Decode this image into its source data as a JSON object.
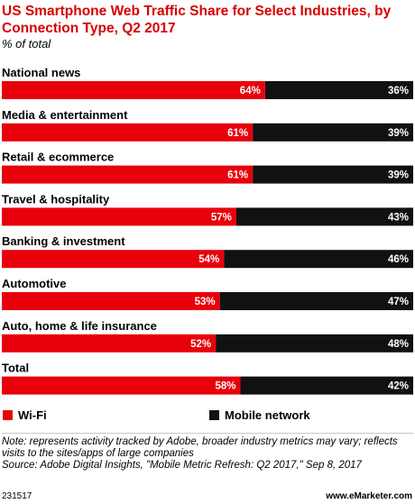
{
  "header": {
    "title": "US Smartphone Web Traffic Share for Select Industries, by Connection Type, Q2 2017",
    "subtitle": "% of total"
  },
  "colors": {
    "wifi": "#e8000b",
    "mobile": "#111111"
  },
  "chart_data": {
    "type": "bar",
    "orientation": "horizontal",
    "stacked": true,
    "categories": [
      "National news",
      "Media & entertainment",
      "Retail & ecommerce",
      "Travel & hospitality",
      "Banking & investment",
      "Automotive",
      "Auto, home & life insurance",
      "Total"
    ],
    "series": [
      {
        "name": "Wi-Fi",
        "values": [
          64,
          61,
          61,
          57,
          54,
          53,
          52,
          58
        ]
      },
      {
        "name": "Mobile network",
        "values": [
          36,
          39,
          39,
          43,
          46,
          47,
          48,
          42
        ]
      }
    ],
    "unit": "%",
    "xlim": [
      0,
      100
    ],
    "legend_position": "bottom"
  },
  "legend": {
    "wifi_label": "Wi-Fi",
    "mobile_label": "Mobile network"
  },
  "notes": {
    "note": "Note: represents activity tracked by Adobe, broader industry metrics may vary; reflects visits to the sites/apps of large companies",
    "source": "Source: Adobe Digital Insights, \"Mobile Metric Refresh: Q2 2017,\" Sep 8, 2017"
  },
  "footer": {
    "id": "231517",
    "brand": "www.eMarketer.com"
  }
}
